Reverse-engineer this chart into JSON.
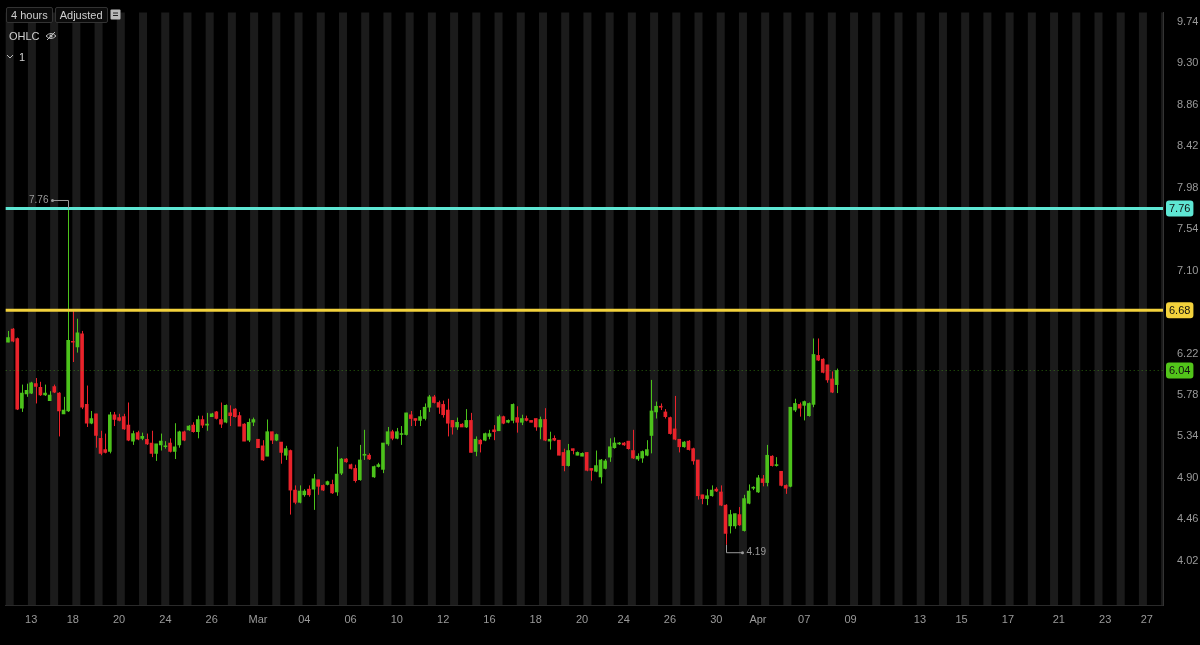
{
  "chart_data": {
    "type": "candlestick",
    "annotations": [
      "4 hours",
      "Adjusted",
      "OHLC",
      "1",
      {
        "text": "7.76",
        "y": 7.76
      },
      "4.19"
    ],
    "categories": [
      null,
      null,
      null,
      null,
      null,
      "13",
      null,
      null,
      null,
      null,
      null,
      null,
      null,
      null,
      "18",
      null,
      null,
      null,
      null,
      null,
      null,
      null,
      null,
      null,
      "20",
      null,
      null,
      null,
      null,
      null,
      null,
      null,
      null,
      null,
      "24",
      null,
      null,
      null,
      null,
      null,
      null,
      null,
      null,
      null,
      "26",
      null,
      null,
      null,
      null,
      null,
      null,
      null,
      null,
      null,
      "Mar",
      null,
      null,
      null,
      null,
      null,
      null,
      null,
      null,
      null,
      "04",
      null,
      null,
      null,
      null,
      null,
      null,
      null,
      null,
      null,
      "06",
      null,
      null,
      null,
      null,
      null,
      null,
      null,
      null,
      null,
      "10",
      null,
      null,
      null,
      null,
      null,
      null,
      null,
      null,
      null,
      "12",
      null,
      null,
      null,
      null,
      null,
      null,
      null,
      null,
      null,
      "16",
      null,
      null,
      null,
      null,
      null,
      null,
      null,
      null,
      null,
      "18",
      null,
      null,
      null,
      null,
      null,
      null,
      null,
      null,
      null,
      "20",
      null,
      null,
      null,
      null,
      null,
      null,
      null,
      null,
      "24",
      null,
      null,
      null,
      null,
      null,
      null,
      null,
      null,
      null,
      "26",
      null,
      null,
      null,
      null,
      null,
      null,
      null,
      null,
      null,
      "30",
      null,
      null,
      null,
      null,
      null,
      null,
      null,
      null,
      "Apr",
      null,
      null,
      null,
      null,
      null,
      null,
      null,
      null,
      null,
      "07",
      null,
      null,
      null,
      null,
      null,
      null,
      null,
      null,
      null,
      "09",
      null,
      null,
      null,
      null,
      null,
      null,
      null,
      null,
      null,
      null,
      null,
      null,
      null,
      null,
      "13",
      null,
      null,
      null,
      null,
      null,
      null,
      null,
      null,
      "15",
      null,
      null,
      null,
      null,
      null,
      null,
      null,
      null,
      null,
      "17",
      null,
      null,
      null,
      null,
      null,
      null,
      null,
      null,
      null,
      null,
      "21",
      null,
      null,
      null,
      null,
      null,
      null,
      null,
      null,
      null,
      "23",
      null,
      null,
      null,
      null,
      null,
      null,
      null,
      null,
      "27",
      null,
      null,
      null
    ],
    "ohlc": [
      [
        6.34,
        6.46,
        6.34,
        6.39
      ],
      [
        6.48,
        6.49,
        6.34,
        6.35
      ],
      [
        6.38,
        6.39,
        5.62,
        5.63
      ],
      [
        5.64,
        5.89,
        5.6,
        5.8
      ],
      [
        5.79,
        5.9,
        5.76,
        5.83
      ],
      [
        5.8,
        5.92,
        5.79,
        5.91
      ],
      [
        5.9,
        5.96,
        5.69,
        5.87
      ],
      [
        5.86,
        5.92,
        5.77,
        5.78
      ],
      [
        5.78,
        5.89,
        5.77,
        5.8
      ],
      [
        5.72,
        5.82,
        5.72,
        5.78
      ],
      [
        5.87,
        5.89,
        5.8,
        5.81
      ],
      [
        5.8,
        5.81,
        5.34,
        5.61
      ],
      [
        5.58,
        5.76,
        5.58,
        5.62
      ],
      [
        5.61,
        7.76,
        5.6,
        6.36
      ],
      [
        6.35,
        6.68,
        6.13,
        6.34
      ],
      [
        6.29,
        6.59,
        6.23,
        6.44
      ],
      [
        6.43,
        6.46,
        5.63,
        5.65
      ],
      [
        5.68,
        5.88,
        5.44,
        5.48
      ],
      [
        5.48,
        5.61,
        5.47,
        5.53
      ],
      [
        5.58,
        5.58,
        5.22,
        5.35
      ],
      [
        5.32,
        5.4,
        5.14,
        5.16
      ],
      [
        5.2,
        5.37,
        5.16,
        5.17
      ],
      [
        5.18,
        5.6,
        5.16,
        5.57
      ],
      [
        5.57,
        5.6,
        5.45,
        5.52
      ],
      [
        5.54,
        5.58,
        5.5,
        5.51
      ],
      [
        5.55,
        5.58,
        5.41,
        5.42
      ],
      [
        5.46,
        5.7,
        5.29,
        5.3
      ],
      [
        5.29,
        5.4,
        5.25,
        5.37
      ],
      [
        5.38,
        5.4,
        5.3,
        5.31
      ],
      [
        5.32,
        5.38,
        5.3,
        5.34
      ],
      [
        5.31,
        5.37,
        5.25,
        5.26
      ],
      [
        5.27,
        5.4,
        5.12,
        5.16
      ],
      [
        5.16,
        5.26,
        5.08,
        5.26
      ],
      [
        5.25,
        5.37,
        5.19,
        5.29
      ],
      [
        5.23,
        5.29,
        5.21,
        5.24
      ],
      [
        5.27,
        5.32,
        5.17,
        5.18
      ],
      [
        5.18,
        5.48,
        5.1,
        5.23
      ],
      [
        5.25,
        5.4,
        5.22,
        5.39
      ],
      [
        5.39,
        5.4,
        5.29,
        5.3
      ],
      [
        5.41,
        5.46,
        5.4,
        5.45
      ],
      [
        5.46,
        5.49,
        5.38,
        5.39
      ],
      [
        5.39,
        5.56,
        5.32,
        5.52
      ],
      [
        5.52,
        5.56,
        5.43,
        5.46
      ],
      [
        5.46,
        5.59,
        5.4,
        5.47
      ],
      [
        5.55,
        5.59,
        5.55,
        5.58
      ],
      [
        5.6,
        5.61,
        5.52,
        5.53
      ],
      [
        5.52,
        5.7,
        5.43,
        5.47
      ],
      [
        5.49,
        5.68,
        5.48,
        5.67
      ],
      [
        5.59,
        5.67,
        5.45,
        5.56
      ],
      [
        5.63,
        5.64,
        5.54,
        5.55
      ],
      [
        5.56,
        5.6,
        5.45,
        5.45
      ],
      [
        5.47,
        5.48,
        5.29,
        5.29
      ],
      [
        5.3,
        5.53,
        5.28,
        5.49
      ],
      [
        5.49,
        5.54,
        5.45,
        5.52
      ],
      [
        5.31,
        5.31,
        5.22,
        5.22
      ],
      [
        5.24,
        5.3,
        5.08,
        5.09
      ],
      [
        5.13,
        5.52,
        5.13,
        5.39
      ],
      [
        5.39,
        5.39,
        5.26,
        5.3
      ],
      [
        5.3,
        5.37,
        5.29,
        5.36
      ],
      [
        5.28,
        5.28,
        5.05,
        5.17
      ],
      [
        5.14,
        5.24,
        5.09,
        5.21
      ],
      [
        5.19,
        5.2,
        4.51,
        4.77
      ],
      [
        4.77,
        4.82,
        4.62,
        4.64
      ],
      [
        4.64,
        4.82,
        4.63,
        4.76
      ],
      [
        4.72,
        4.78,
        4.7,
        4.76
      ],
      [
        4.78,
        4.82,
        4.7,
        4.72
      ],
      [
        4.78,
        4.94,
        4.56,
        4.89
      ],
      [
        4.88,
        4.88,
        4.72,
        4.81
      ],
      [
        4.82,
        4.83,
        4.76,
        4.77
      ],
      [
        4.83,
        4.87,
        4.82,
        4.86
      ],
      [
        4.83,
        4.88,
        4.73,
        4.74
      ],
      [
        4.75,
        5.23,
        4.71,
        4.94
      ],
      [
        4.95,
        5.11,
        4.93,
        5.1
      ],
      [
        5.1,
        5.11,
        5.06,
        5.07
      ],
      [
        5.04,
        5.05,
        4.99,
        5.0
      ],
      [
        5.0,
        5.04,
        4.85,
        4.87
      ],
      [
        4.88,
        5.25,
        4.87,
        5.09
      ],
      [
        5.14,
        5.41,
        5.09,
        5.15
      ],
      [
        5.14,
        5.16,
        5.09,
        5.1
      ],
      [
        4.91,
        5.03,
        4.9,
        5.02
      ],
      [
        5.02,
        5.06,
        5.01,
        5.04
      ],
      [
        4.99,
        5.27,
        4.95,
        5.27
      ],
      [
        5.26,
        5.44,
        5.24,
        5.39
      ],
      [
        5.39,
        5.41,
        5.3,
        5.32
      ],
      [
        5.32,
        5.43,
        5.31,
        5.39
      ],
      [
        5.36,
        5.45,
        5.25,
        5.37
      ],
      [
        5.36,
        5.59,
        5.35,
        5.59
      ],
      [
        5.57,
        5.61,
        5.45,
        5.53
      ],
      [
        5.53,
        5.53,
        5.45,
        5.51
      ],
      [
        5.51,
        5.62,
        5.45,
        5.55
      ],
      [
        5.53,
        5.69,
        5.51,
        5.65
      ],
      [
        5.65,
        5.78,
        5.6,
        5.76
      ],
      [
        5.76,
        5.78,
        5.69,
        5.7
      ],
      [
        5.7,
        5.72,
        5.58,
        5.65
      ],
      [
        5.68,
        5.72,
        5.54,
        5.57
      ],
      [
        5.62,
        5.74,
        5.34,
        5.48
      ],
      [
        5.51,
        5.51,
        5.36,
        5.44
      ],
      [
        5.44,
        5.54,
        5.41,
        5.49
      ],
      [
        5.47,
        5.48,
        5.44,
        5.44
      ],
      [
        5.44,
        5.63,
        5.43,
        5.51
      ],
      [
        5.51,
        5.59,
        5.17,
        5.17
      ],
      [
        5.18,
        5.34,
        5.13,
        5.31
      ],
      [
        5.3,
        5.31,
        5.17,
        5.26
      ],
      [
        5.3,
        5.38,
        5.29,
        5.37
      ],
      [
        5.34,
        5.41,
        5.31,
        5.37
      ],
      [
        5.41,
        5.46,
        5.3,
        5.39
      ],
      [
        5.4,
        5.57,
        5.4,
        5.55
      ],
      [
        5.55,
        5.56,
        5.47,
        5.48
      ],
      [
        5.49,
        5.52,
        5.48,
        5.51
      ],
      [
        5.51,
        5.69,
        5.48,
        5.68
      ],
      [
        5.54,
        5.66,
        5.38,
        5.49
      ],
      [
        5.49,
        5.57,
        5.46,
        5.53
      ],
      [
        5.53,
        5.56,
        5.5,
        5.51
      ],
      [
        5.51,
        5.51,
        5.49,
        5.49
      ],
      [
        5.53,
        5.53,
        5.4,
        5.44
      ],
      [
        5.44,
        5.55,
        5.31,
        5.52
      ],
      [
        5.52,
        5.64,
        5.29,
        5.3
      ],
      [
        5.29,
        5.39,
        5.2,
        5.31
      ],
      [
        5.32,
        5.35,
        5.29,
        5.3
      ],
      [
        5.3,
        5.3,
        5.14,
        5.14
      ],
      [
        5.17,
        5.21,
        4.97,
        5.03
      ],
      [
        5.03,
        5.26,
        5.02,
        5.19
      ],
      [
        5.21,
        5.21,
        5.15,
        5.19
      ],
      [
        5.14,
        5.18,
        5.14,
        5.17
      ],
      [
        5.13,
        5.17,
        5.13,
        5.16
      ],
      [
        5.17,
        5.17,
        4.97,
        4.98
      ],
      [
        5.0,
        5.0,
        4.87,
        4.98
      ],
      [
        4.97,
        5.19,
        4.96,
        5.03
      ],
      [
        4.91,
        5.1,
        4.84,
        5.09
      ],
      [
        5.0,
        5.1,
        4.99,
        5.08
      ],
      [
        5.12,
        5.32,
        5.07,
        5.23
      ],
      [
        5.22,
        5.33,
        5.21,
        5.27
      ],
      [
        5.26,
        5.28,
        5.25,
        5.27
      ],
      [
        5.27,
        5.28,
        5.24,
        5.25
      ],
      [
        5.29,
        5.29,
        5.2,
        5.21
      ],
      [
        5.19,
        5.41,
        5.1,
        5.11
      ],
      [
        5.1,
        5.16,
        5.08,
        5.13
      ],
      [
        5.11,
        5.19,
        5.06,
        5.18
      ],
      [
        5.14,
        5.3,
        5.13,
        5.2
      ],
      [
        5.35,
        5.94,
        5.16,
        5.61
      ],
      [
        5.6,
        5.71,
        5.53,
        5.66
      ],
      [
        5.66,
        5.69,
        5.62,
        5.65
      ],
      [
        5.6,
        5.63,
        5.53,
        5.55
      ],
      [
        5.54,
        5.55,
        5.36,
        5.37
      ],
      [
        5.42,
        5.77,
        5.3,
        5.31
      ],
      [
        5.31,
        5.31,
        5.17,
        5.23
      ],
      [
        5.23,
        5.29,
        5.22,
        5.28
      ],
      [
        5.29,
        5.3,
        5.19,
        5.2
      ],
      [
        5.21,
        5.22,
        5.04,
        5.08
      ],
      [
        5.09,
        5.09,
        4.67,
        4.71
      ],
      [
        4.72,
        4.72,
        4.62,
        4.68
      ],
      [
        4.68,
        4.78,
        4.61,
        4.71
      ],
      [
        4.71,
        4.82,
        4.7,
        4.77
      ],
      [
        4.78,
        4.8,
        4.75,
        4.76
      ],
      [
        4.75,
        4.82,
        4.6,
        4.61
      ],
      [
        4.61,
        4.62,
        4.19,
        4.31
      ],
      [
        4.39,
        4.56,
        4.31,
        4.51
      ],
      [
        4.39,
        4.52,
        4.36,
        4.52
      ],
      [
        4.51,
        4.59,
        4.39,
        4.4
      ],
      [
        4.34,
        4.72,
        4.33,
        4.68
      ],
      [
        4.63,
        4.83,
        4.62,
        4.76
      ],
      [
        4.79,
        4.81,
        4.77,
        4.8
      ],
      [
        4.75,
        4.93,
        4.74,
        4.9
      ],
      [
        4.89,
        4.93,
        4.81,
        4.85
      ],
      [
        4.85,
        5.25,
        4.81,
        5.14
      ],
      [
        5.13,
        5.14,
        5.02,
        5.03
      ],
      [
        5.03,
        5.12,
        5.02,
        5.04
      ],
      [
        4.97,
        4.97,
        4.81,
        4.82
      ],
      [
        4.82,
        4.83,
        4.73,
        4.79
      ],
      [
        4.81,
        5.65,
        4.8,
        5.65
      ],
      [
        5.62,
        5.74,
        5.6,
        5.69
      ],
      [
        5.68,
        5.7,
        5.55,
        5.64
      ],
      [
        5.67,
        5.72,
        5.51,
        5.71
      ],
      [
        5.56,
        5.7,
        5.55,
        5.69
      ],
      [
        5.68,
        6.38,
        5.65,
        6.21
      ],
      [
        6.2,
        6.38,
        6.14,
        6.15
      ],
      [
        6.16,
        6.17,
        6.01,
        6.02
      ],
      [
        6.1,
        6.1,
        5.91,
        5.94
      ],
      [
        5.95,
        6.03,
        5.8,
        5.81
      ],
      [
        5.89,
        6.06,
        5.8,
        6.04
      ],
      null,
      null,
      null,
      null,
      null,
      null,
      null,
      null,
      null,
      null,
      null,
      null,
      null,
      null,
      null,
      null,
      null,
      null,
      null,
      null,
      null,
      null,
      null,
      null,
      null,
      null,
      null,
      null,
      null,
      null,
      null,
      null,
      null,
      null,
      null,
      null,
      null,
      null,
      null,
      null,
      null,
      null,
      null,
      null,
      null,
      null,
      null,
      null,
      null,
      null,
      null,
      null,
      null,
      null,
      null,
      null,
      null,
      null,
      null,
      null,
      null,
      null,
      null,
      null,
      null,
      null,
      null,
      null,
      null,
      null
    ],
    "ylim": [
      3.55,
      9.84
    ],
    "yticks": [
      4.02,
      4.46,
      {
        "value": 4.9,
        "label": "4.90"
      },
      5.34,
      5.78,
      6.22,
      {
        "value": 7.1,
        "label": "7.10"
      },
      7.54,
      7.98,
      8.42,
      8.86,
      {
        "value": 9.3,
        "label": "9.30"
      },
      9.74
    ],
    "ref_lines": [
      {
        "axis": "y",
        "value": 7.76,
        "label": "7.76",
        "color": "#5ee6d3"
      },
      {
        "axis": "y",
        "value": 6.68,
        "label": "6.68",
        "color": "#f3d23c"
      },
      {
        "axis": "y",
        "value": 6.04,
        "label": "6.04",
        "color": "#52c41a",
        "line_style": "dotted"
      }
    ],
    "grid": false,
    "legend": false
  }
}
